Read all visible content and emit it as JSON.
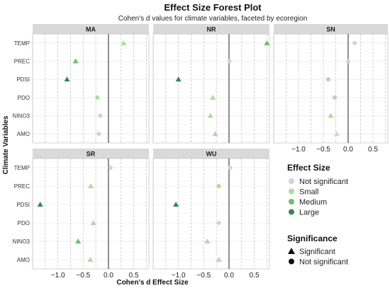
{
  "chart_data": {
    "type": "scatter",
    "title": "Effect Size Forest Plot",
    "subtitle": "Cohen's d values for climate variables, faceted by ecoregion",
    "xlabel": "Cohen's d Effect Size",
    "ylabel": "Climate Variables",
    "variables": [
      "TEMP",
      "PREC",
      "PDSI",
      "PDO",
      "NINO3",
      "AMO"
    ],
    "xlim": [
      -1.5,
      0.8
    ],
    "x_ticks": [
      -1.0,
      -0.5,
      0.0,
      0.5
    ],
    "x_tick_labels": [
      "−1.0",
      "−0.5",
      "0.0",
      "0.5"
    ],
    "grid": true,
    "effect_size_colors": {
      "Not significant": "#d3d3d3",
      "Small": "#a8df9a",
      "Medium": "#6cc06d",
      "Large": "#2e8b4f"
    },
    "facets": [
      {
        "name": "MA",
        "points": [
          {
            "variable": "TEMP",
            "d": 0.3,
            "size": "Small",
            "significant": true
          },
          {
            "variable": "PREC",
            "d": -0.65,
            "size": "Medium",
            "significant": true
          },
          {
            "variable": "PDSI",
            "d": -0.82,
            "size": "Large",
            "significant": true
          },
          {
            "variable": "PDO",
            "d": -0.22,
            "size": "Small",
            "significant": false
          },
          {
            "variable": "NINO3",
            "d": -0.16,
            "size": "Not significant",
            "significant": false
          },
          {
            "variable": "AMO",
            "d": -0.19,
            "size": "Not significant",
            "significant": false
          }
        ]
      },
      {
        "name": "NR",
        "points": [
          {
            "variable": "TEMP",
            "d": 0.75,
            "size": "Medium",
            "significant": true
          },
          {
            "variable": "PREC",
            "d": 0.01,
            "size": "Not significant",
            "significant": false
          },
          {
            "variable": "PDSI",
            "d": -1.0,
            "size": "Large",
            "significant": true
          },
          {
            "variable": "PDO",
            "d": -0.32,
            "size": "Small",
            "significant": true
          },
          {
            "variable": "NINO3",
            "d": -0.37,
            "size": "Small",
            "significant": true
          },
          {
            "variable": "AMO",
            "d": -0.27,
            "size": "Small",
            "significant": true
          }
        ]
      },
      {
        "name": "SN",
        "points": [
          {
            "variable": "TEMP",
            "d": 0.13,
            "size": "Not significant",
            "significant": false
          },
          {
            "variable": "PREC",
            "d": 0.0,
            "size": "Not significant",
            "significant": false
          },
          {
            "variable": "PDSI",
            "d": -0.4,
            "size": "Small",
            "significant": false
          },
          {
            "variable": "PDO",
            "d": -0.27,
            "size": "Small",
            "significant": false
          },
          {
            "variable": "NINO3",
            "d": -0.35,
            "size": "Small",
            "significant": true
          },
          {
            "variable": "AMO",
            "d": -0.23,
            "size": "Not significant",
            "significant": true
          }
        ]
      },
      {
        "name": "SR",
        "points": [
          {
            "variable": "TEMP",
            "d": 0.04,
            "size": "Not significant",
            "significant": false
          },
          {
            "variable": "PREC",
            "d": -0.35,
            "size": "Small",
            "significant": true
          },
          {
            "variable": "PDSI",
            "d": -1.35,
            "size": "Large",
            "significant": true
          },
          {
            "variable": "PDO",
            "d": -0.3,
            "size": "Small",
            "significant": true
          },
          {
            "variable": "NINO3",
            "d": -0.6,
            "size": "Medium",
            "significant": true
          },
          {
            "variable": "AMO",
            "d": -0.36,
            "size": "Small",
            "significant": true
          }
        ]
      },
      {
        "name": "WU",
        "points": [
          {
            "variable": "TEMP",
            "d": 0.02,
            "size": "Not significant",
            "significant": false
          },
          {
            "variable": "PREC",
            "d": -0.2,
            "size": "Small",
            "significant": false
          },
          {
            "variable": "PDSI",
            "d": -1.05,
            "size": "Large",
            "significant": true
          },
          {
            "variable": "PDO",
            "d": -0.2,
            "size": "Not significant",
            "significant": false
          },
          {
            "variable": "NINO3",
            "d": -0.43,
            "size": "Small",
            "significant": true
          },
          {
            "variable": "AMO",
            "d": -0.2,
            "size": "Small",
            "significant": true
          }
        ]
      }
    ],
    "legend": {
      "placement": "right",
      "size_title": "Effect Size",
      "size_items": [
        "Not significant",
        "Small",
        "Medium",
        "Large"
      ],
      "shape_title": "Significance",
      "shape_items": [
        {
          "label": "Significant",
          "shape": "triangle"
        },
        {
          "label": "Not significant",
          "shape": "circle"
        }
      ]
    }
  }
}
